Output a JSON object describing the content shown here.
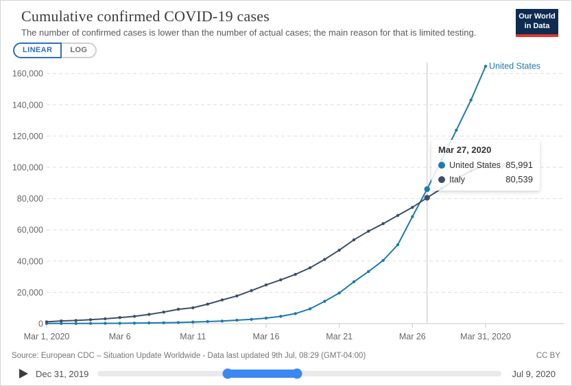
{
  "header": {
    "title": "Cumulative confirmed COVID-19 cases",
    "subtitle": "The number of confirmed cases is lower than the number of actual cases; the main reason for that is limited testing.",
    "logo": {
      "line1": "Our World",
      "line2": "in Data",
      "bg": "#0d2c50",
      "bar": "#e2372b"
    }
  },
  "controls": {
    "linear_label": "LINEAR",
    "log_label": "LOG",
    "active": "LINEAR",
    "active_color": "#2f6cc2"
  },
  "chart_data": {
    "type": "line",
    "title": "Cumulative confirmed COVID-19 cases",
    "xlabel": "",
    "ylabel": "",
    "grid": "horizontal-dashed",
    "x_days": "March 1-31, 2020 (daily)",
    "x_ticks": [
      {
        "day": 1,
        "label": "Mar 1, 2020"
      },
      {
        "day": 6,
        "label": "Mar 6"
      },
      {
        "day": 11,
        "label": "Mar 11"
      },
      {
        "day": 16,
        "label": "Mar 16"
      },
      {
        "day": 21,
        "label": "Mar 21"
      },
      {
        "day": 26,
        "label": "Mar 26"
      },
      {
        "day": 31,
        "label": "Mar 31, 2020"
      }
    ],
    "y_ticks": [
      {
        "value": 0,
        "label": "0"
      },
      {
        "value": 20000,
        "label": "20,000"
      },
      {
        "value": 40000,
        "label": "40,000"
      },
      {
        "value": 60000,
        "label": "60,000"
      },
      {
        "value": 80000,
        "label": "80,000"
      },
      {
        "value": 100000,
        "label": "100,000"
      },
      {
        "value": 120000,
        "label": "120,000"
      },
      {
        "value": 140000,
        "label": "140,000"
      },
      {
        "value": 160000,
        "label": "160,000"
      }
    ],
    "ylim": [
      0,
      166000
    ],
    "highlight_day": 27,
    "series": [
      {
        "name": "United States",
        "color": "#1e7aa8",
        "values": [
          68,
          75,
          100,
          124,
          158,
          221,
          319,
          435,
          541,
          704,
          994,
          1301,
          1630,
          2183,
          2727,
          3499,
          4632,
          6421,
          9415,
          14250,
          19624,
          26747,
          33276,
          40450,
          50453,
          68440,
          85991,
          104837,
          123750,
          143025,
          164620
        ]
      },
      {
        "name": "Italy",
        "color": "#3d4e66",
        "values": [
          1128,
          1689,
          2036,
          2502,
          3089,
          3858,
          4636,
          5883,
          7375,
          9172,
          10149,
          12462,
          15113,
          17660,
          21157,
          24747,
          27980,
          31506,
          35713,
          41035,
          47021,
          53578,
          59138,
          63927,
          69176,
          74386,
          80539,
          86498,
          92472,
          97689,
          101739
        ]
      }
    ],
    "legend": "direct end-of-line labels"
  },
  "tooltip": {
    "title": "Mar 27, 2020",
    "rows": [
      {
        "series": "United States",
        "value": "85,991"
      },
      {
        "series": "Italy",
        "value": "80,539"
      }
    ]
  },
  "footer": {
    "source": "Source: European CDC – Situation Update Worldwide - Data last updated 9th Jul, 08:29 (GMT-04:00)",
    "license": "CC BY"
  },
  "timeline": {
    "start_label": "Dec 31, 2019",
    "end_label": "Jul 9, 2020",
    "selection": {
      "start_pct": 32.2,
      "width_pct": 17.1
    },
    "accent": "#3b87f3"
  }
}
